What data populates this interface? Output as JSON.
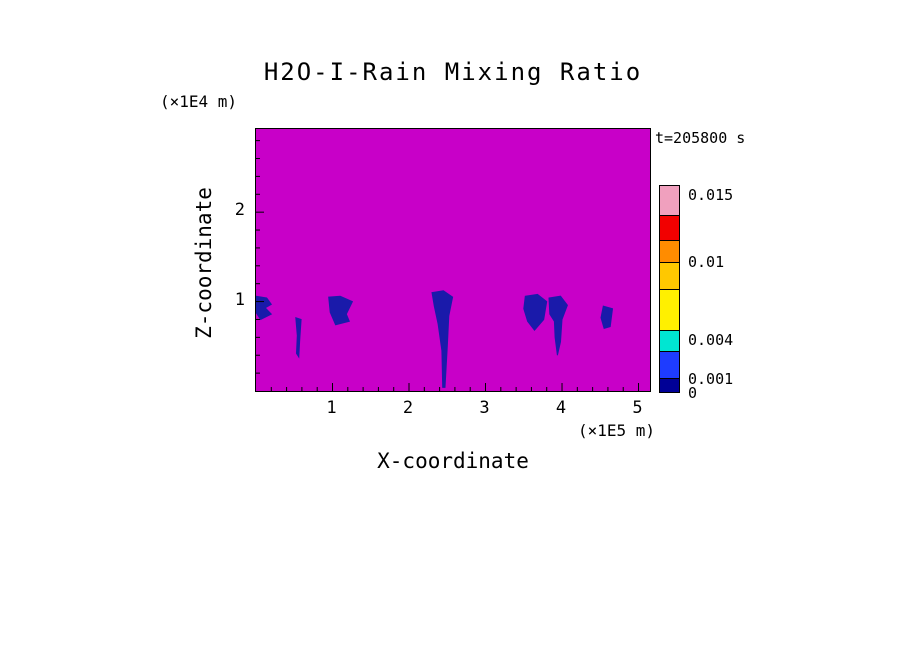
{
  "chart_data": {
    "type": "heatmap",
    "title": "H2O-I-Rain Mixing Ratio",
    "time_label": "t=205800 s",
    "xlabel": "X-coordinate",
    "ylabel": "Z-coordinate",
    "x_units": "(×1E5 m)",
    "y_units": "(×1E4 m)",
    "xlim": [
      0,
      5.15
    ],
    "ylim": [
      0,
      2.93
    ],
    "x_ticks": [
      1,
      2,
      3,
      4,
      5
    ],
    "y_ticks": [
      1,
      2
    ],
    "x_minor_step": 0.2,
    "y_minor_step": 0.2,
    "grid": false,
    "field_background_color": "#c800c8",
    "feature_color": "#1a1aaa",
    "features": [
      {
        "name": "rain-plume-left-edge",
        "points": [
          [
            0,
            1.06
          ],
          [
            0.14,
            1.04
          ],
          [
            0.2,
            0.97
          ],
          [
            0.12,
            0.93
          ],
          [
            0.2,
            0.86
          ],
          [
            0.06,
            0.8
          ],
          [
            0,
            0.88
          ]
        ]
      },
      {
        "name": "rain-streak-x0p55",
        "points": [
          [
            0.52,
            0.82
          ],
          [
            0.59,
            0.8
          ],
          [
            0.57,
            0.55
          ],
          [
            0.56,
            0.38
          ],
          [
            0.53,
            0.42
          ],
          [
            0.54,
            0.62
          ]
        ]
      },
      {
        "name": "rain-plume-x1p1",
        "points": [
          [
            0.95,
            1.05
          ],
          [
            1.1,
            1.06
          ],
          [
            1.26,
            1.0
          ],
          [
            1.18,
            0.86
          ],
          [
            1.22,
            0.78
          ],
          [
            1.04,
            0.74
          ],
          [
            0.97,
            0.88
          ]
        ]
      },
      {
        "name": "rain-plume-x2p45-deep",
        "points": [
          [
            2.3,
            1.1
          ],
          [
            2.45,
            1.12
          ],
          [
            2.57,
            1.05
          ],
          [
            2.52,
            0.84
          ],
          [
            2.5,
            0.5
          ],
          [
            2.47,
            0.04
          ],
          [
            2.44,
            0.04
          ],
          [
            2.43,
            0.45
          ],
          [
            2.38,
            0.75
          ],
          [
            2.33,
            0.95
          ]
        ]
      },
      {
        "name": "rain-plume-x3p65",
        "points": [
          [
            3.52,
            1.06
          ],
          [
            3.68,
            1.08
          ],
          [
            3.8,
            1.0
          ],
          [
            3.76,
            0.8
          ],
          [
            3.64,
            0.68
          ],
          [
            3.55,
            0.78
          ],
          [
            3.5,
            0.92
          ]
        ]
      },
      {
        "name": "rain-plume-x3p95",
        "points": [
          [
            3.83,
            1.04
          ],
          [
            3.98,
            1.06
          ],
          [
            4.07,
            0.96
          ],
          [
            4.0,
            0.8
          ],
          [
            3.98,
            0.55
          ],
          [
            3.94,
            0.4
          ],
          [
            3.91,
            0.6
          ],
          [
            3.9,
            0.78
          ],
          [
            3.84,
            0.86
          ]
        ]
      },
      {
        "name": "rain-plume-x4p6",
        "points": [
          [
            4.54,
            0.95
          ],
          [
            4.66,
            0.92
          ],
          [
            4.63,
            0.72
          ],
          [
            4.55,
            0.7
          ],
          [
            4.51,
            0.82
          ]
        ]
      }
    ],
    "colorbar": {
      "orientation": "vertical",
      "position": "right",
      "segments_top_to_bottom": [
        {
          "color": "#f0a0be",
          "height_pct": 14
        },
        {
          "color": "#f20000",
          "height_pct": 12
        },
        {
          "color": "#ff8c00",
          "height_pct": 11
        },
        {
          "color": "#ffc800",
          "height_pct": 13
        },
        {
          "color": "#fff000",
          "height_pct": 20
        },
        {
          "color": "#00e6d2",
          "height_pct": 10
        },
        {
          "color": "#1e3cff",
          "height_pct": 13
        },
        {
          "color": "#000096",
          "height_pct": 7
        }
      ],
      "levels": [
        0,
        0.001,
        0.004,
        0.01,
        0.015
      ],
      "labels": [
        {
          "text": "0.015",
          "pos": 0.05
        },
        {
          "text": "0.01",
          "pos": 0.37
        },
        {
          "text": "0.004",
          "pos": 0.745
        },
        {
          "text": "0.001",
          "pos": 0.935
        },
        {
          "text": "0",
          "pos": 1.0
        }
      ]
    }
  }
}
